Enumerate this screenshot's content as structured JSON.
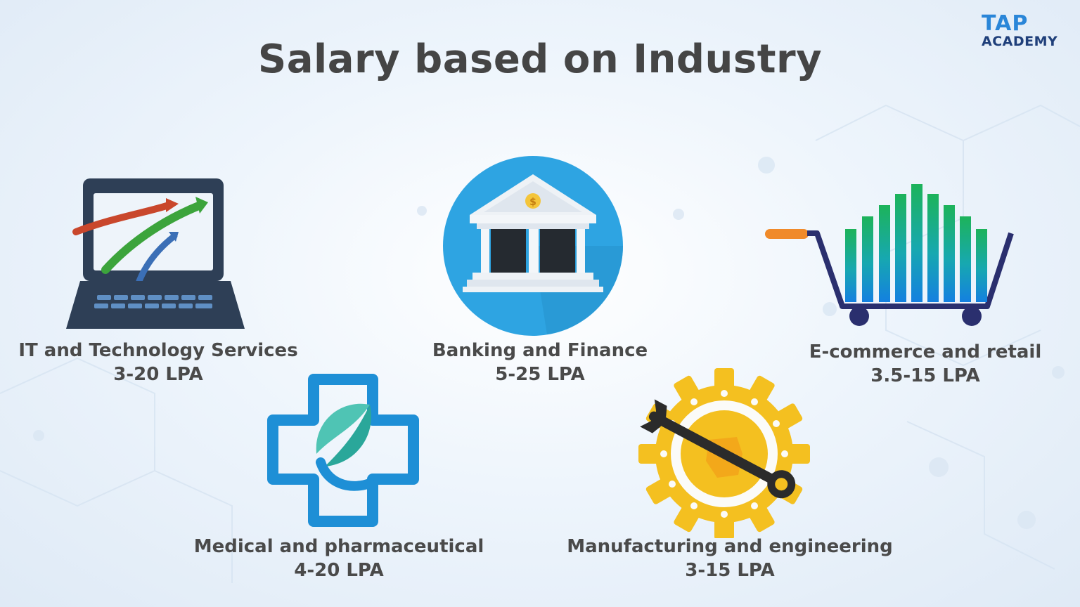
{
  "title": "Salary based on Industry",
  "logo": {
    "line1": "TAP",
    "line2": "ACADEMY"
  },
  "industries": [
    {
      "name": "IT and Technology Services",
      "salary": "3-20 LPA",
      "icon": "laptop-growth-icon"
    },
    {
      "name": "Banking and Finance",
      "salary": "5-25 LPA",
      "icon": "bank-icon"
    },
    {
      "name": "E-commerce and retail",
      "salary": "3.5-15 LPA",
      "icon": "shopping-cart-chart-icon"
    },
    {
      "name": "Medical and pharmaceutical",
      "salary": "4-20 LPA",
      "icon": "medical-cross-icon"
    },
    {
      "name": "Manufacturing and engineering",
      "salary": "3-15 LPA",
      "icon": "gear-wrench-icon"
    }
  ],
  "colors": {
    "title": "#454545",
    "label": "#4a4a4a",
    "logo_tap": "#2a86d8",
    "logo_academy": "#1f3f7a",
    "bank_circle": "#2ea4e2",
    "gear": "#f4c020",
    "cart": "#2a2f6e"
  }
}
